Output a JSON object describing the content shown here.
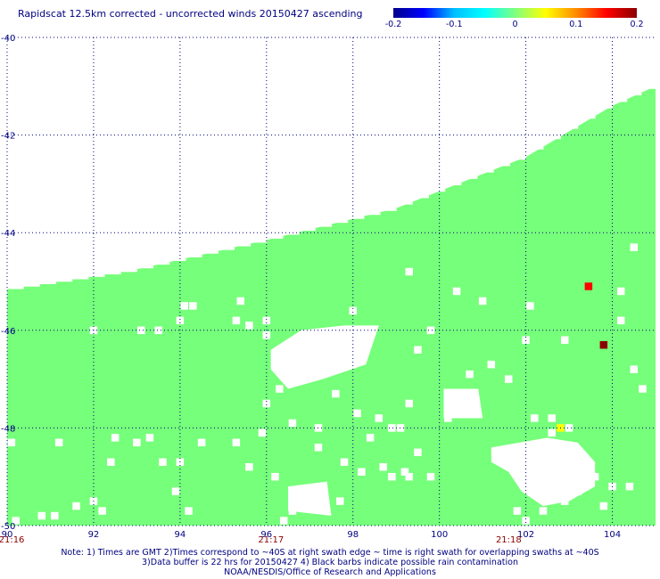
{
  "title": "Rapidscat 12.5km corrected - uncorrected winds 20150427 ascending",
  "notes": {
    "line1": "Note: 1) Times are GMT 2)Times correspond to ~40S at right swath edge ~ time is right swath for overlapping swaths at ~40S",
    "line2": "3)Data buffer is 22 hrs for 20150427 4) Black barbs indicate possible rain contamination",
    "line3": "NOAA/NESDIS/Office of Research and Applications"
  },
  "colors": {
    "swath": "#76ff7a",
    "grid": "#000080",
    "axis_text": "#000080",
    "time_text": "#8b0000"
  },
  "chart_data": {
    "type": "heatmap",
    "title": "Rapidscat 12.5km corrected - uncorrected winds 20150427 ascending",
    "xlabel": "",
    "ylabel": "",
    "xlim": [
      90,
      105
    ],
    "ylim": [
      -50,
      -40
    ],
    "grid": true,
    "x_ticks": [
      90,
      92,
      94,
      96,
      98,
      100,
      102,
      104
    ],
    "x_tick_labels": [
      "90",
      "92",
      "94",
      "96",
      "98",
      "100",
      "102",
      "104"
    ],
    "y_ticks": [
      -40,
      -42,
      -44,
      -46,
      -48,
      -50
    ],
    "y_tick_labels": [
      "-40",
      "-42",
      "-44",
      "-46",
      "-48",
      "-50"
    ],
    "time_labels": [
      {
        "lon": 90.0,
        "text": "21:16"
      },
      {
        "lon": 96.0,
        "text": "21:17"
      },
      {
        "lon": 101.5,
        "text": "21:18"
      }
    ],
    "colorbar": {
      "min": -0.2,
      "max": 0.2,
      "tick_values": [
        -0.2,
        -0.1,
        0,
        0.1,
        0.2
      ],
      "tick_labels": [
        "-0.2",
        "-0.1",
        "0",
        "0.1",
        "0.2"
      ],
      "colors": [
        "#00008b",
        "#0000ff",
        "#00bfff",
        "#00ffff",
        "#7fff7f",
        "#ffff00",
        "#ff8c00",
        "#ff0000",
        "#8b0000"
      ]
    },
    "swath_value": 0,
    "swath_edge": [
      [
        90.0,
        -45.15
      ],
      [
        93.0,
        -44.75
      ],
      [
        96.0,
        -44.15
      ],
      [
        99.0,
        -43.5
      ],
      [
        102.0,
        -42.45
      ],
      [
        104.0,
        -41.4
      ],
      [
        105.0,
        -41.0
      ]
    ],
    "nonzero_cells": [
      {
        "lon": 103.45,
        "lat": -45.1,
        "value": 0.12
      },
      {
        "lon": 103.8,
        "lat": -46.3,
        "value": 0.2
      },
      {
        "lon": 102.8,
        "lat": -48.0,
        "value": 0.06
      }
    ],
    "no_data_regions": [
      [
        [
          96.1,
          -46.4
        ],
        [
          96.8,
          -46.0
        ],
        [
          97.8,
          -45.9
        ],
        [
          98.6,
          -45.9
        ],
        [
          98.3,
          -46.7
        ],
        [
          97.3,
          -47.0
        ],
        [
          96.5,
          -47.2
        ],
        [
          96.1,
          -46.8
        ]
      ],
      [
        [
          100.1,
          -47.2
        ],
        [
          100.9,
          -47.2
        ],
        [
          101.0,
          -47.8
        ],
        [
          100.1,
          -47.8
        ]
      ],
      [
        [
          101.2,
          -48.4
        ],
        [
          102.5,
          -48.2
        ],
        [
          103.2,
          -48.3
        ],
        [
          103.6,
          -48.7
        ],
        [
          103.6,
          -49.2
        ],
        [
          103.0,
          -49.5
        ],
        [
          102.4,
          -49.6
        ],
        [
          101.9,
          -49.3
        ],
        [
          101.6,
          -48.9
        ],
        [
          101.2,
          -48.7
        ]
      ],
      [
        [
          96.5,
          -49.2
        ],
        [
          97.4,
          -49.1
        ],
        [
          97.5,
          -49.8
        ],
        [
          96.5,
          -49.7
        ]
      ]
    ],
    "no_data_cells": [
      [
        92.0,
        -46.0
      ],
      [
        93.1,
        -46.0
      ],
      [
        93.5,
        -46.0
      ],
      [
        94.0,
        -45.8
      ],
      [
        94.3,
        -45.5
      ],
      [
        96.0,
        -46.1
      ],
      [
        96.5,
        -46.7
      ],
      [
        96.3,
        -47.2
      ],
      [
        96.0,
        -47.5
      ],
      [
        96.6,
        -47.9
      ],
      [
        97.2,
        -48.0
      ],
      [
        97.6,
        -47.3
      ],
      [
        98.1,
        -47.7
      ],
      [
        98.6,
        -47.8
      ],
      [
        98.9,
        -48.0
      ],
      [
        99.1,
        -48.0
      ],
      [
        99.5,
        -48.5
      ],
      [
        98.7,
        -48.8
      ],
      [
        99.2,
        -48.9
      ],
      [
        99.8,
        -49.0
      ],
      [
        99.3,
        -47.5
      ],
      [
        100.2,
        -47.8
      ],
      [
        100.7,
        -46.9
      ],
      [
        101.6,
        -47.0
      ],
      [
        101.2,
        -46.7
      ],
      [
        102.2,
        -47.8
      ],
      [
        102.6,
        -48.1
      ],
      [
        102.0,
        -46.2
      ],
      [
        103.0,
        -48.0
      ],
      [
        103.8,
        -49.6
      ],
      [
        104.0,
        -49.2
      ],
      [
        104.2,
        -45.2
      ],
      [
        104.5,
        -44.3
      ],
      [
        104.2,
        -45.8
      ],
      [
        104.5,
        -46.8
      ],
      [
        104.7,
        -47.2
      ],
      [
        102.9,
        -46.2
      ],
      [
        102.6,
        -47.8
      ],
      [
        102.1,
        -45.5
      ],
      [
        101.0,
        -45.4
      ],
      [
        100.4,
        -45.2
      ],
      [
        98.0,
        -45.6
      ],
      [
        99.5,
        -46.4
      ],
      [
        99.8,
        -46.0
      ],
      [
        99.3,
        -44.8
      ],
      [
        96.0,
        -45.8
      ],
      [
        95.6,
        -45.9
      ],
      [
        95.3,
        -45.8
      ],
      [
        95.4,
        -45.4
      ],
      [
        94.1,
        -45.5
      ],
      [
        90.1,
        -48.3
      ],
      [
        91.2,
        -48.3
      ],
      [
        92.5,
        -48.2
      ],
      [
        93.3,
        -48.2
      ],
      [
        93.0,
        -48.3
      ],
      [
        92.4,
        -48.7
      ],
      [
        93.6,
        -48.7
      ],
      [
        94.0,
        -48.7
      ],
      [
        94.5,
        -48.3
      ],
      [
        95.3,
        -48.3
      ],
      [
        95.9,
        -48.1
      ],
      [
        95.6,
        -48.8
      ],
      [
        96.2,
        -49.0
      ],
      [
        96.6,
        -49.7
      ],
      [
        96.4,
        -49.9
      ],
      [
        97.0,
        -49.5
      ],
      [
        97.7,
        -49.5
      ],
      [
        97.2,
        -48.4
      ],
      [
        97.8,
        -48.7
      ],
      [
        98.4,
        -48.2
      ],
      [
        98.2,
        -48.9
      ],
      [
        98.9,
        -49.0
      ],
      [
        99.3,
        -49.0
      ],
      [
        101.8,
        -49.7
      ],
      [
        102.0,
        -49.9
      ],
      [
        102.4,
        -49.7
      ],
      [
        102.9,
        -49.5
      ],
      [
        103.2,
        -49.3
      ],
      [
        104.4,
        -49.2
      ],
      [
        103.6,
        -49.0
      ],
      [
        92.0,
        -49.5
      ],
      [
        92.2,
        -49.7
      ],
      [
        91.6,
        -49.6
      ],
      [
        91.1,
        -49.8
      ],
      [
        90.8,
        -49.8
      ],
      [
        90.2,
        -49.9
      ],
      [
        94.2,
        -49.7
      ],
      [
        93.9,
        -49.3
      ]
    ]
  }
}
